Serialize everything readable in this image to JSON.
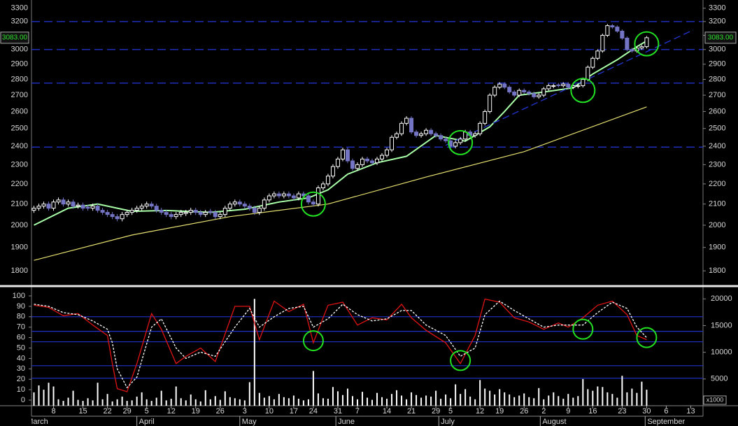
{
  "chart_data": [
    {
      "type": "candlestick",
      "log": true,
      "xlim": [
        -0.5,
        136.5
      ],
      "ylim": [
        1749,
        3347
      ],
      "yticks": [
        1800,
        1900,
        2000,
        2100,
        2200,
        2300,
        2400,
        2500,
        2600,
        2700,
        2800,
        2900,
        3000,
        3100,
        3200,
        3300
      ],
      "xticks": [
        {
          "value": 4,
          "label": "8"
        },
        {
          "value": 10,
          "label": "15"
        },
        {
          "value": 15,
          "label": "22"
        },
        {
          "value": 19,
          "label": "29"
        },
        {
          "value": 23,
          "label": "5"
        },
        {
          "value": 28,
          "label": "12"
        },
        {
          "value": 33,
          "label": "19"
        },
        {
          "value": 38,
          "label": "26"
        },
        {
          "value": 43,
          "label": "3"
        },
        {
          "value": 48,
          "label": "10"
        },
        {
          "value": 53,
          "label": "17"
        },
        {
          "value": 57,
          "label": "24"
        },
        {
          "value": 62,
          "label": "31"
        },
        {
          "value": 66,
          "label": "7"
        },
        {
          "value": 72,
          "label": "14"
        },
        {
          "value": 77,
          "label": "21"
        },
        {
          "value": 82,
          "label": "29"
        },
        {
          "value": 85,
          "label": "5"
        },
        {
          "value": 91,
          "label": "12"
        },
        {
          "value": 95,
          "label": "19"
        },
        {
          "value": 100,
          "label": "26"
        },
        {
          "value": 104,
          "label": "2"
        },
        {
          "value": 109,
          "label": "9"
        },
        {
          "value": 114,
          "label": "16"
        },
        {
          "value": 120,
          "label": "23"
        },
        {
          "value": 125,
          "label": "30"
        },
        {
          "value": 129,
          "label": "6"
        },
        {
          "value": 134,
          "label": "13"
        }
      ],
      "months": [
        {
          "value": -1.9,
          "label": "March"
        },
        {
          "value": 21,
          "label": "April"
        },
        {
          "value": 42,
          "label": "May"
        },
        {
          "value": 61.6,
          "label": "June"
        },
        {
          "value": 82.6,
          "label": "July"
        },
        {
          "value": 103.3,
          "label": "August"
        },
        {
          "value": 124.7,
          "label": "September"
        }
      ],
      "up_color": "#ffffff",
      "down_color": "#7474c4",
      "open": [
        2070,
        2080,
        2090,
        2100,
        2080,
        2110,
        2120,
        2100,
        2110,
        2090,
        2095,
        2085,
        2080,
        2090,
        2070,
        2060,
        2050,
        2040,
        2030,
        2050,
        2060,
        2070,
        2080,
        2090,
        2100,
        2090,
        2070,
        2060,
        2050,
        2040,
        2050,
        2055,
        2060,
        2070,
        2060,
        2050,
        2065,
        2060,
        2040,
        2050,
        2080,
        2100,
        2110,
        2100,
        2090,
        2080,
        2060,
        2080,
        2120,
        2140,
        2150,
        2140,
        2150,
        2140,
        2130,
        2150,
        2140,
        2110,
        2100,
        2180,
        2200,
        2240,
        2290,
        2330,
        2380,
        2320,
        2280,
        2300,
        2330,
        2320,
        2310,
        2330,
        2350,
        2380,
        2450,
        2470,
        2530,
        2560,
        2480,
        2460,
        2470,
        2490,
        2470,
        2460,
        2440,
        2430,
        2400,
        2420,
        2440,
        2480,
        2460,
        2470,
        2530,
        2600,
        2700,
        2750,
        2770,
        2750,
        2720,
        2700,
        2730,
        2720,
        2710,
        2690,
        2700,
        2740,
        2755,
        2765,
        2760,
        2770,
        2750,
        2755,
        2760,
        2800,
        2880,
        2940,
        2990,
        3100,
        3170,
        3160,
        3130,
        3080,
        3000,
        2990,
        3010,
        3020
      ],
      "high": [
        2092,
        2102,
        2112,
        2112,
        2122,
        2132,
        2132,
        2122,
        2122,
        2107,
        2107,
        2097,
        2102,
        2102,
        2082,
        2072,
        2062,
        2052,
        2062,
        2072,
        2082,
        2092,
        2102,
        2112,
        2112,
        2102,
        2082,
        2072,
        2062,
        2062,
        2072,
        2072,
        2082,
        2082,
        2072,
        2072,
        2077,
        2072,
        2062,
        2092,
        2112,
        2122,
        2122,
        2112,
        2102,
        2092,
        2092,
        2132,
        2152,
        2162,
        2162,
        2162,
        2162,
        2152,
        2162,
        2162,
        2152,
        2122,
        2192,
        2212,
        2252,
        2302,
        2342,
        2392,
        2392,
        2332,
        2312,
        2342,
        2342,
        2332,
        2342,
        2362,
        2392,
        2462,
        2482,
        2542,
        2572,
        2572,
        2492,
        2482,
        2502,
        2502,
        2482,
        2472,
        2452,
        2442,
        2432,
        2452,
        2492,
        2492,
        2482,
        2542,
        2612,
        2712,
        2762,
        2782,
        2782,
        2762,
        2732,
        2742,
        2742,
        2732,
        2722,
        2712,
        2752,
        2772,
        2772,
        2777,
        2782,
        2782,
        2772,
        2772,
        2812,
        2892,
        2952,
        3002,
        3112,
        3182,
        3182,
        3172,
        3142,
        3092,
        3012,
        3022,
        3032,
        3095
      ],
      "low": [
        2058,
        2068,
        2078,
        2068,
        2068,
        2098,
        2088,
        2088,
        2078,
        2078,
        2068,
        2068,
        2068,
        2058,
        2048,
        2038,
        2028,
        2018,
        2018,
        2038,
        2048,
        2058,
        2068,
        2078,
        2078,
        2058,
        2048,
        2038,
        2028,
        2028,
        2038,
        2043,
        2048,
        2048,
        2038,
        2038,
        2048,
        2028,
        2028,
        2038,
        2068,
        2088,
        2088,
        2078,
        2068,
        2048,
        2048,
        2068,
        2108,
        2128,
        2128,
        2128,
        2128,
        2118,
        2118,
        2128,
        2098,
        2088,
        2088,
        2168,
        2188,
        2228,
        2278,
        2318,
        2308,
        2268,
        2268,
        2288,
        2308,
        2298,
        2298,
        2318,
        2338,
        2368,
        2438,
        2458,
        2518,
        2468,
        2448,
        2448,
        2458,
        2458,
        2448,
        2428,
        2418,
        2388,
        2388,
        2408,
        2428,
        2448,
        2448,
        2458,
        2518,
        2588,
        2688,
        2738,
        2738,
        2708,
        2688,
        2688,
        2708,
        2698,
        2678,
        2678,
        2688,
        2728,
        2743,
        2748,
        2748,
        2738,
        2738,
        2743,
        2748,
        2788,
        2868,
        2928,
        2978,
        3088,
        3148,
        3118,
        3068,
        2988,
        2978,
        2978,
        2998,
        3008
      ],
      "close": [
        2080,
        2090,
        2100,
        2080,
        2110,
        2120,
        2100,
        2110,
        2090,
        2095,
        2080,
        2080,
        2090,
        2070,
        2060,
        2050,
        2040,
        2030,
        2050,
        2060,
        2070,
        2080,
        2090,
        2100,
        2090,
        2070,
        2060,
        2050,
        2040,
        2050,
        2060,
        2060,
        2070,
        2060,
        2050,
        2060,
        2060,
        2040,
        2050,
        2080,
        2100,
        2110,
        2100,
        2090,
        2080,
        2060,
        2080,
        2120,
        2140,
        2150,
        2140,
        2150,
        2140,
        2130,
        2150,
        2140,
        2110,
        2100,
        2180,
        2200,
        2240,
        2290,
        2330,
        2380,
        2320,
        2280,
        2300,
        2330,
        2320,
        2310,
        2330,
        2350,
        2380,
        2450,
        2470,
        2530,
        2560,
        2480,
        2460,
        2470,
        2490,
        2470,
        2460,
        2440,
        2430,
        2400,
        2420,
        2440,
        2480,
        2460,
        2470,
        2530,
        2600,
        2700,
        2750,
        2770,
        2750,
        2720,
        2700,
        2730,
        2720,
        2710,
        2690,
        2700,
        2740,
        2760,
        2760,
        2760,
        2770,
        2750,
        2760,
        2760,
        2800,
        2880,
        2940,
        2990,
        3100,
        3170,
        3160,
        3130,
        3080,
        3000,
        2990,
        3010,
        3020,
        3083
      ],
      "series": [
        {
          "color": "#e6e070",
          "x": [
            0,
            20,
            40,
            60,
            80,
            100,
            125
          ],
          "values": [
            1844,
            1955,
            2040,
            2100,
            2235,
            2370,
            2628
          ]
        },
        {
          "color": "#a8ffa8",
          "x": [
            0,
            7,
            13,
            20,
            27,
            36,
            43,
            50,
            56,
            60,
            64,
            70,
            76,
            82,
            88,
            93,
            96,
            99,
            104,
            110,
            114,
            119,
            123,
            125
          ],
          "values": [
            2000,
            2080,
            2100,
            2065,
            2069,
            2060,
            2075,
            2110,
            2130,
            2170,
            2250,
            2310,
            2345,
            2460,
            2428,
            2510,
            2600,
            2700,
            2720,
            2746,
            2835,
            2930,
            3020,
            3060
          ]
        }
      ],
      "hlines": [
        3200,
        3000,
        2776,
        2395
      ],
      "hline_color": "#2232c8",
      "trendline": {
        "color": "#2232c8",
        "x": [
          84,
          134.5
        ],
        "values": [
          2405,
          3138
        ]
      },
      "circles": [
        {
          "x": 57,
          "value": 2100
        },
        {
          "x": 87,
          "value": 2420
        },
        {
          "x": 112,
          "value": 2730
        },
        {
          "x": 125,
          "value": 3040
        }
      ],
      "circle_color": "#22e022",
      "last_price": {
        "value": 3083,
        "label": "3083.00"
      }
    },
    {
      "type": "oscillator",
      "xlim": [
        -0.5,
        136.5
      ],
      "ylim": [
        -5.4,
        107.4
      ],
      "yticks": [
        0,
        10,
        20,
        30,
        40,
        50,
        60,
        70,
        80,
        90,
        100
      ],
      "y2lim": [
        0,
        22000
      ],
      "y2ticks": [
        5000,
        10000,
        15000,
        20000
      ],
      "y2_unit": "x1000",
      "hlines": [
        80,
        66,
        56,
        33,
        21
      ],
      "hline_color": "#2232c8",
      "series": [
        {
          "color": "#e01414",
          "dash": false,
          "x": [
            0,
            3,
            6,
            9,
            12,
            15,
            16,
            17,
            19,
            21,
            24,
            26,
            29,
            31,
            34,
            37,
            41,
            44,
            46,
            49,
            52,
            55,
            57,
            60,
            63,
            66,
            69,
            72,
            75,
            77,
            80,
            84,
            87,
            90,
            92,
            95,
            98,
            101,
            104,
            107,
            109,
            112,
            115,
            118,
            121,
            123,
            125
          ],
          "values": [
            91,
            89,
            81,
            83,
            72,
            62,
            35,
            11,
            8,
            35,
            83,
            68,
            35,
            42,
            50,
            37,
            90,
            90,
            58,
            95,
            85,
            92,
            55,
            91,
            94,
            72,
            79,
            77,
            92,
            79,
            67,
            55,
            35,
            62,
            97,
            94,
            79,
            75,
            68,
            74,
            70,
            79,
            91,
            95,
            82,
            62,
            58
          ]
        },
        {
          "color": "#ffffff",
          "dash": true,
          "x": [
            0,
            3,
            6,
            9,
            12,
            15,
            16,
            17,
            19,
            21,
            24,
            26,
            29,
            31,
            34,
            37,
            41,
            44,
            46,
            49,
            52,
            55,
            57,
            60,
            63,
            66,
            69,
            72,
            75,
            77,
            80,
            84,
            87,
            90,
            92,
            95,
            98,
            101,
            104,
            107,
            109,
            112,
            115,
            118,
            121,
            123,
            125
          ],
          "values": [
            92,
            90,
            84,
            82,
            76,
            68,
            55,
            30,
            12,
            22,
            70,
            78,
            50,
            40,
            46,
            42,
            70,
            88,
            70,
            80,
            88,
            90,
            70,
            78,
            92,
            82,
            76,
            78,
            86,
            86,
            72,
            62,
            42,
            50,
            82,
            95,
            86,
            78,
            70,
            72,
            72,
            72,
            84,
            94,
            88,
            70,
            60
          ]
        }
      ],
      "volume_color": "#ffffff",
      "volume": [
        2500,
        3800,
        3000,
        4300,
        3600,
        1200,
        900,
        1500,
        2800,
        1100,
        900,
        1400,
        1000,
        4300,
        1200,
        2200,
        800,
        1200,
        1700,
        900,
        1000,
        1700,
        2500,
        1200,
        900,
        1500,
        2800,
        1000,
        1300,
        3600,
        1400,
        1000,
        2100,
        1200,
        800,
        2900,
        1200,
        1800,
        1100,
        2700,
        1600,
        1400,
        1200,
        1000,
        4400,
        20000,
        2400,
        1500,
        1800,
        1200,
        2200,
        1600,
        1400,
        1900,
        1300,
        1000,
        1200,
        6500,
        2300,
        1400,
        1300,
        3500,
        2700,
        2000,
        3200,
        1800,
        1200,
        2600,
        1500,
        1100,
        2400,
        1600,
        1300,
        2200,
        2900,
        1900,
        1200,
        2500,
        2000,
        1500,
        1900,
        1700,
        2800,
        1300,
        2100,
        1400,
        4000,
        2200,
        3100,
        1700,
        1200,
        4800,
        3200,
        2800,
        2100,
        3100,
        2500,
        2100,
        1600,
        1900,
        2300,
        1600,
        1400,
        3300,
        1200,
        1900,
        2500,
        1800,
        1300,
        2200,
        1500,
        1800,
        5000,
        3100,
        2800,
        3600,
        3500,
        2500,
        2200,
        1500,
        5600,
        2500,
        3200,
        2400,
        4500,
        3000
      ],
      "circles": [
        {
          "x": 57,
          "value": 57
        },
        {
          "x": 87,
          "value": 38
        },
        {
          "x": 112,
          "value": 68
        },
        {
          "x": 125,
          "value": 60
        }
      ],
      "circle_color": "#22e022"
    }
  ]
}
